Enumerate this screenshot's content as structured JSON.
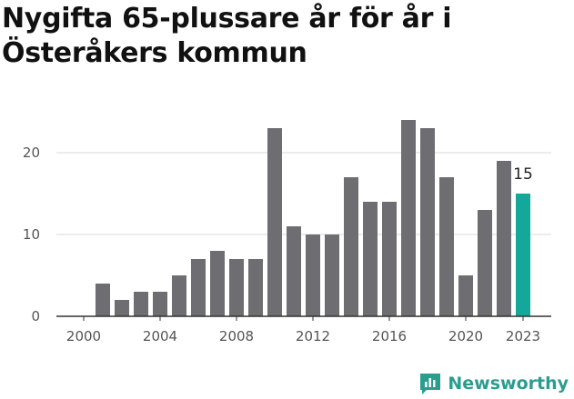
{
  "title": "Nygifta 65-plussare år för år i Österåkers kommun",
  "brand": {
    "name": "Newsworthy",
    "icon": "newsworthy-logo-icon",
    "color": "#2a9d8f"
  },
  "chart_data": {
    "type": "bar",
    "title": "Nygifta 65-plussare år för år i Österåkers kommun",
    "categories": [
      "2000",
      "2001",
      "2002",
      "2003",
      "2004",
      "2005",
      "2006",
      "2007",
      "2008",
      "2009",
      "2010",
      "2011",
      "2012",
      "2013",
      "2014",
      "2015",
      "2016",
      "2017",
      "2018",
      "2019",
      "2020",
      "2021",
      "2022",
      "2023"
    ],
    "values": [
      0,
      4,
      2,
      3,
      3,
      5,
      7,
      8,
      7,
      7,
      23,
      11,
      10,
      10,
      17,
      14,
      14,
      24,
      23,
      17,
      5,
      13,
      19,
      15
    ],
    "x_tick_labels": [
      "2000",
      "2004",
      "2008",
      "2012",
      "2016",
      "2020",
      "2023"
    ],
    "y_ticks": [
      0,
      10,
      20
    ],
    "ylim": [
      0,
      25
    ],
    "xlabel": "",
    "ylabel": "",
    "grid": true,
    "legend": "none",
    "bar_color": "#6d6d72",
    "highlight_color": "#14a89a",
    "highlight_category": "2023",
    "highlight_label": "15"
  }
}
